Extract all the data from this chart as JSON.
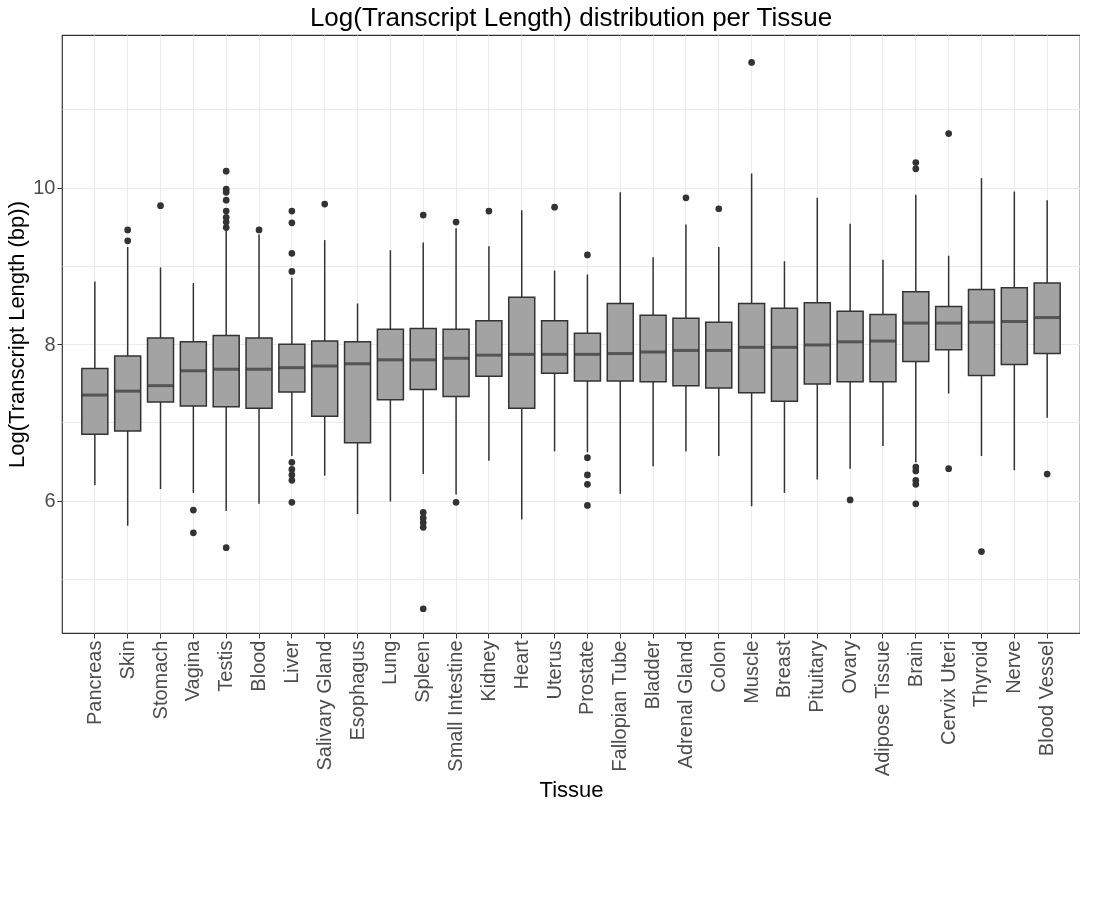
{
  "chart_data": {
    "type": "box",
    "title": "Log(Transcript Length) distribution per Tissue",
    "xlabel": "Tissue",
    "ylabel": "Log(Transcript Length (bp))",
    "categories": [
      "Pancreas",
      "Skin",
      "Stomach",
      "Vagina",
      "Testis",
      "Blood",
      "Liver",
      "Salivary Gland",
      "Esophagus",
      "Lung",
      "Spleen",
      "Small Intestine",
      "Kidney",
      "Heart",
      "Uterus",
      "Prostate",
      "Fallopian Tube",
      "Bladder",
      "Adrenal Gland",
      "Colon",
      "Muscle",
      "Breast",
      "Pituitary",
      "Ovary",
      "Adipose Tissue",
      "Brain",
      "Cervix Uteri",
      "Thyroid",
      "Nerve",
      "Blood Vessel"
    ],
    "ylim": [
      4.31,
      11.95
    ],
    "yticks": [
      {
        "value": 5,
        "label": null
      },
      6,
      {
        "value": 7,
        "label": null
      },
      8,
      {
        "value": 9,
        "label": null
      },
      10,
      {
        "value": 11,
        "label": null
      }
    ],
    "grid": true,
    "series": [
      {
        "color": "#a3a3a3",
        "boxes": [
          {
            "low": 6.2,
            "q1": 6.85,
            "median": 7.35,
            "q3": 7.69,
            "high": 8.8
          },
          {
            "low": 5.68,
            "q1": 6.89,
            "median": 7.4,
            "q3": 7.85,
            "high": 9.24,
            "outliers": [
              9.46,
              9.32
            ]
          },
          {
            "low": 6.15,
            "q1": 7.26,
            "median": 7.47,
            "q3": 8.08,
            "high": 8.98,
            "outliers": [
              9.77
            ]
          },
          {
            "low": 6.1,
            "q1": 7.21,
            "median": 7.66,
            "q3": 8.03,
            "high": 8.78,
            "outliers": [
              5.88,
              5.59
            ]
          },
          {
            "low": 5.87,
            "q1": 7.2,
            "median": 7.68,
            "q3": 8.11,
            "high": 9.45,
            "outliers": [
              10.21,
              9.98,
              9.94,
              9.84,
              9.7,
              9.62,
              9.56,
              9.49,
              5.4
            ]
          },
          {
            "low": 5.96,
            "q1": 7.18,
            "median": 7.68,
            "q3": 8.08,
            "high": 9.4,
            "outliers": [
              9.46
            ]
          },
          {
            "low": 6.57,
            "q1": 7.39,
            "median": 7.7,
            "q3": 8.0,
            "high": 8.85,
            "outliers": [
              9.7,
              9.55,
              9.16,
              8.93,
              6.49,
              6.4,
              6.33,
              6.26,
              5.98
            ]
          },
          {
            "low": 6.32,
            "q1": 7.08,
            "median": 7.72,
            "q3": 8.04,
            "high": 9.33,
            "outliers": [
              9.79
            ]
          },
          {
            "low": 5.83,
            "q1": 6.74,
            "median": 7.75,
            "q3": 8.03,
            "high": 8.52
          },
          {
            "low": 5.99,
            "q1": 7.29,
            "median": 7.8,
            "q3": 8.19,
            "high": 9.2
          },
          {
            "low": 6.34,
            "q1": 7.42,
            "median": 7.8,
            "q3": 8.2,
            "high": 9.3,
            "outliers": [
              9.65,
              5.85,
              5.78,
              5.72,
              5.66,
              4.62
            ]
          },
          {
            "low": 6.08,
            "q1": 7.33,
            "median": 7.82,
            "q3": 8.19,
            "high": 9.48,
            "outliers": [
              9.56,
              5.98
            ]
          },
          {
            "low": 6.51,
            "q1": 7.59,
            "median": 7.86,
            "q3": 8.3,
            "high": 9.25,
            "outliers": [
              9.7
            ]
          },
          {
            "low": 5.76,
            "q1": 7.18,
            "median": 7.87,
            "q3": 8.6,
            "high": 9.71
          },
          {
            "low": 6.63,
            "q1": 7.63,
            "median": 7.87,
            "q3": 8.3,
            "high": 8.94,
            "outliers": [
              9.75
            ]
          },
          {
            "low": 6.62,
            "q1": 7.53,
            "median": 7.87,
            "q3": 8.14,
            "high": 8.89,
            "outliers": [
              9.14,
              6.55,
              6.33,
              6.21,
              5.94
            ]
          },
          {
            "low": 6.09,
            "q1": 7.53,
            "median": 7.88,
            "q3": 8.52,
            "high": 9.94
          },
          {
            "low": 6.44,
            "q1": 7.52,
            "median": 7.9,
            "q3": 8.37,
            "high": 9.11
          },
          {
            "low": 6.63,
            "q1": 7.47,
            "median": 7.92,
            "q3": 8.33,
            "high": 9.53,
            "outliers": [
              9.87
            ]
          },
          {
            "low": 6.57,
            "q1": 7.44,
            "median": 7.92,
            "q3": 8.28,
            "high": 9.24,
            "outliers": [
              9.73
            ]
          },
          {
            "low": 5.93,
            "q1": 7.38,
            "median": 7.96,
            "q3": 8.52,
            "high": 10.18,
            "outliers": [
              11.6
            ]
          },
          {
            "low": 6.1,
            "q1": 7.27,
            "median": 7.96,
            "q3": 8.46,
            "high": 9.06
          },
          {
            "low": 6.27,
            "q1": 7.49,
            "median": 7.99,
            "q3": 8.53,
            "high": 9.87
          },
          {
            "low": 6.41,
            "q1": 7.52,
            "median": 8.03,
            "q3": 8.42,
            "high": 9.54,
            "outliers": [
              6.01
            ]
          },
          {
            "low": 6.7,
            "q1": 7.52,
            "median": 8.04,
            "q3": 8.38,
            "high": 9.08
          },
          {
            "low": 6.49,
            "q1": 7.78,
            "median": 8.27,
            "q3": 8.67,
            "high": 9.91,
            "outliers": [
              10.32,
              10.24,
              6.43,
              6.38,
              6.26,
              6.21,
              5.96
            ]
          },
          {
            "low": 7.37,
            "q1": 7.93,
            "median": 8.27,
            "q3": 8.48,
            "high": 9.13,
            "outliers": [
              10.69,
              6.41
            ]
          },
          {
            "low": 6.57,
            "q1": 7.6,
            "median": 8.28,
            "q3": 8.7,
            "high": 10.12,
            "outliers": [
              5.35
            ]
          },
          {
            "low": 6.39,
            "q1": 7.74,
            "median": 8.29,
            "q3": 8.72,
            "high": 9.95
          },
          {
            "low": 7.06,
            "q1": 7.88,
            "median": 8.34,
            "q3": 8.78,
            "high": 9.84,
            "outliers": [
              6.34
            ]
          }
        ]
      }
    ]
  }
}
